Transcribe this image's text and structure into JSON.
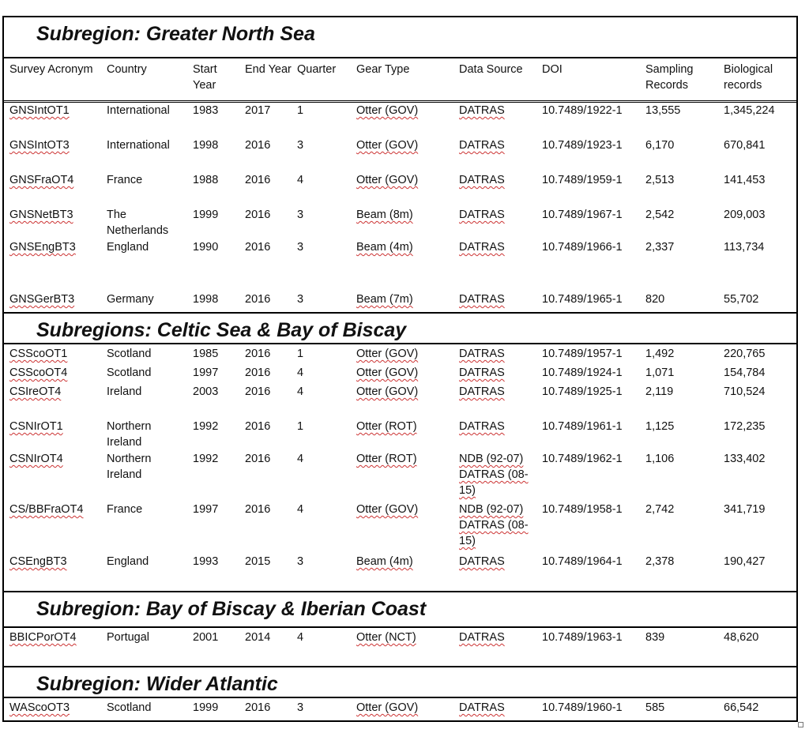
{
  "columns": [
    "Survey Acronym",
    "Country",
    "Start Year",
    "End Year",
    "Quarter",
    "Gear Type",
    "Data Source",
    "DOI",
    "Sampling Records",
    "Biological records"
  ],
  "sections": [
    {
      "title": "Subregion: Greater North Sea",
      "rows": [
        [
          "GNSIntOT1",
          "International",
          "1983",
          "2017",
          "1",
          "Otter (GOV)",
          "DATRAS",
          "10.7489/1922-1",
          "13,555",
          "1,345,224"
        ],
        [
          "GNSIntOT3",
          "International",
          "1998",
          "2016",
          "3",
          "Otter (GOV)",
          "DATRAS",
          "10.7489/1923-1",
          "6,170",
          "670,841"
        ],
        [
          "GNSFraOT4",
          "France",
          "1988",
          "2016",
          "4",
          "Otter (GOV)",
          "DATRAS",
          "10.7489/1959-1",
          "2,513",
          "141,453"
        ],
        [
          "GNSNetBT3",
          "The Netherlands",
          "1999",
          "2016",
          "3",
          "Beam (8m)",
          "DATRAS",
          "10.7489/1967-1",
          "2,542",
          "209,003"
        ],
        [
          "GNSEngBT3",
          "England",
          "1990",
          "2016",
          "3",
          "Beam (4m)",
          "DATRAS",
          "10.7489/1966-1",
          "2,337",
          "113,734"
        ],
        [
          "GNSGerBT3",
          "Germany",
          "1998",
          "2016",
          "3",
          "Beam (7m)",
          "DATRAS",
          "10.7489/1965-1",
          "820",
          "55,702"
        ]
      ]
    },
    {
      "title": "Subregions: Celtic Sea & Bay of Biscay",
      "rows": [
        [
          "CSScoOT1",
          "Scotland",
          "1985",
          "2016",
          "1",
          "Otter (GOV)",
          "DATRAS",
          "10.7489/1957-1",
          "1,492",
          "220,765"
        ],
        [
          "CSScoOT4",
          "Scotland",
          "1997",
          "2016",
          "4",
          "Otter (GOV)",
          "DATRAS",
          "10.7489/1924-1",
          "1,071",
          "154,784"
        ],
        [
          "CSIreOT4",
          "Ireland",
          "2003",
          "2016",
          "4",
          "Otter (GOV)",
          "DATRAS",
          "10.7489/1925-1",
          "2,119",
          "710,524"
        ],
        [
          "CSNIrOT1",
          "Northern Ireland",
          "1992",
          "2016",
          "1",
          "Otter (ROT)",
          "DATRAS",
          "10.7489/1961-1",
          "1,125",
          "172,235"
        ],
        [
          "CSNIrOT4",
          "Northern Ireland",
          "1992",
          "2016",
          "4",
          "Otter (ROT)",
          "NDB (92-07) DATRAS (08-15)",
          "10.7489/1962-1",
          "1,106",
          "133,402"
        ],
        [
          "CS/BBFraOT4",
          "France",
          "1997",
          "2016",
          "4",
          "Otter (GOV)",
          "NDB (92-07) DATRAS (08-15)",
          "10.7489/1958-1",
          "2,742",
          "341,719"
        ],
        [
          "CSEngBT3",
          "England",
          "1993",
          "2015",
          "3",
          "Beam (4m)",
          "DATRAS",
          "10.7489/1964-1",
          "2,378",
          "190,427"
        ]
      ]
    },
    {
      "title": "Subregion: Bay of Biscay & Iberian Coast",
      "rows": [
        [
          "BBICPorOT4",
          "Portugal",
          "2001",
          "2014",
          "4",
          "Otter (NCT)",
          "DATRAS",
          "10.7489/1963-1",
          "839",
          "48,620"
        ]
      ]
    },
    {
      "title": "Subregion: Wider Atlantic",
      "rows": [
        [
          "WAScoOT3",
          "Scotland",
          "1999",
          "2016",
          "3",
          "Otter (GOV)",
          "DATRAS",
          "10.7489/1960-1",
          "585",
          "66,542"
        ]
      ]
    }
  ]
}
